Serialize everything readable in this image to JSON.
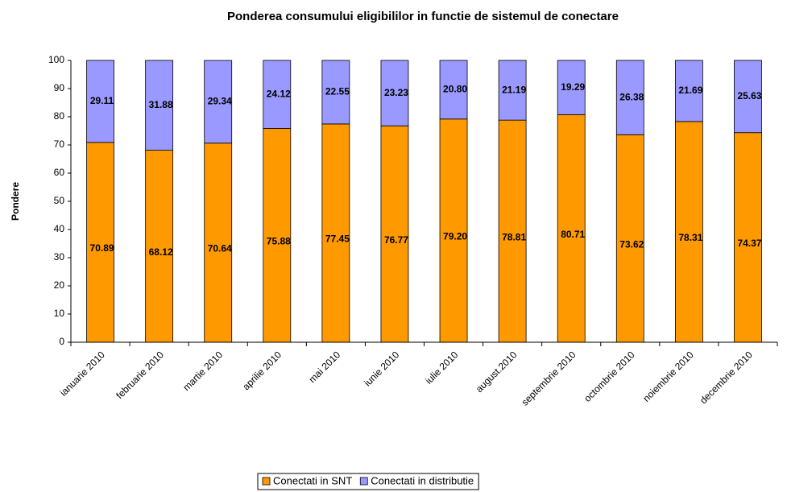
{
  "chart_data": {
    "type": "stacked_bar",
    "title": "Ponderea consumului eligibililor in functie de sistemul de conectare",
    "ylabel": "Pondere",
    "categories": [
      "ianuarie 2010",
      "februarie 2010",
      "martie 2010",
      "aprilie 2010",
      "mai 2010",
      "iunie 2010",
      "iulie 2010",
      "august.2010",
      "septembrie 2010",
      "octombrie 2010",
      "noiembrie 2010",
      "decembrie 2010"
    ],
    "series": [
      {
        "name": "Conectati in SNT",
        "color": "#ff9900",
        "values": [
          70.89,
          68.12,
          70.64,
          75.88,
          77.45,
          76.77,
          79.2,
          78.81,
          80.71,
          73.62,
          78.31,
          74.37
        ],
        "value_labels": [
          "70.89",
          "68.12",
          "70.64",
          "75.88",
          "77.45",
          "76.77",
          "79.20",
          "78.81",
          "80.71",
          "73.62",
          "78.31",
          "74.37"
        ]
      },
      {
        "name": "Conectati in distributie",
        "color": "#9999ff",
        "values": [
          29.11,
          31.88,
          29.34,
          24.12,
          22.55,
          23.23,
          20.8,
          21.19,
          19.29,
          26.38,
          21.69,
          25.63
        ],
        "value_labels": [
          "29.11",
          "31.88",
          "29.34",
          "24.12",
          "22.55",
          "23.23",
          "20.80",
          "21.19",
          "19.29",
          "26.38",
          "21.69",
          "25.63"
        ]
      }
    ],
    "ylim": [
      0,
      100
    ],
    "yticks": [
      0,
      10,
      20,
      30,
      40,
      50,
      60,
      70,
      80,
      90,
      100
    ],
    "grid": false,
    "legend": "bottom"
  }
}
